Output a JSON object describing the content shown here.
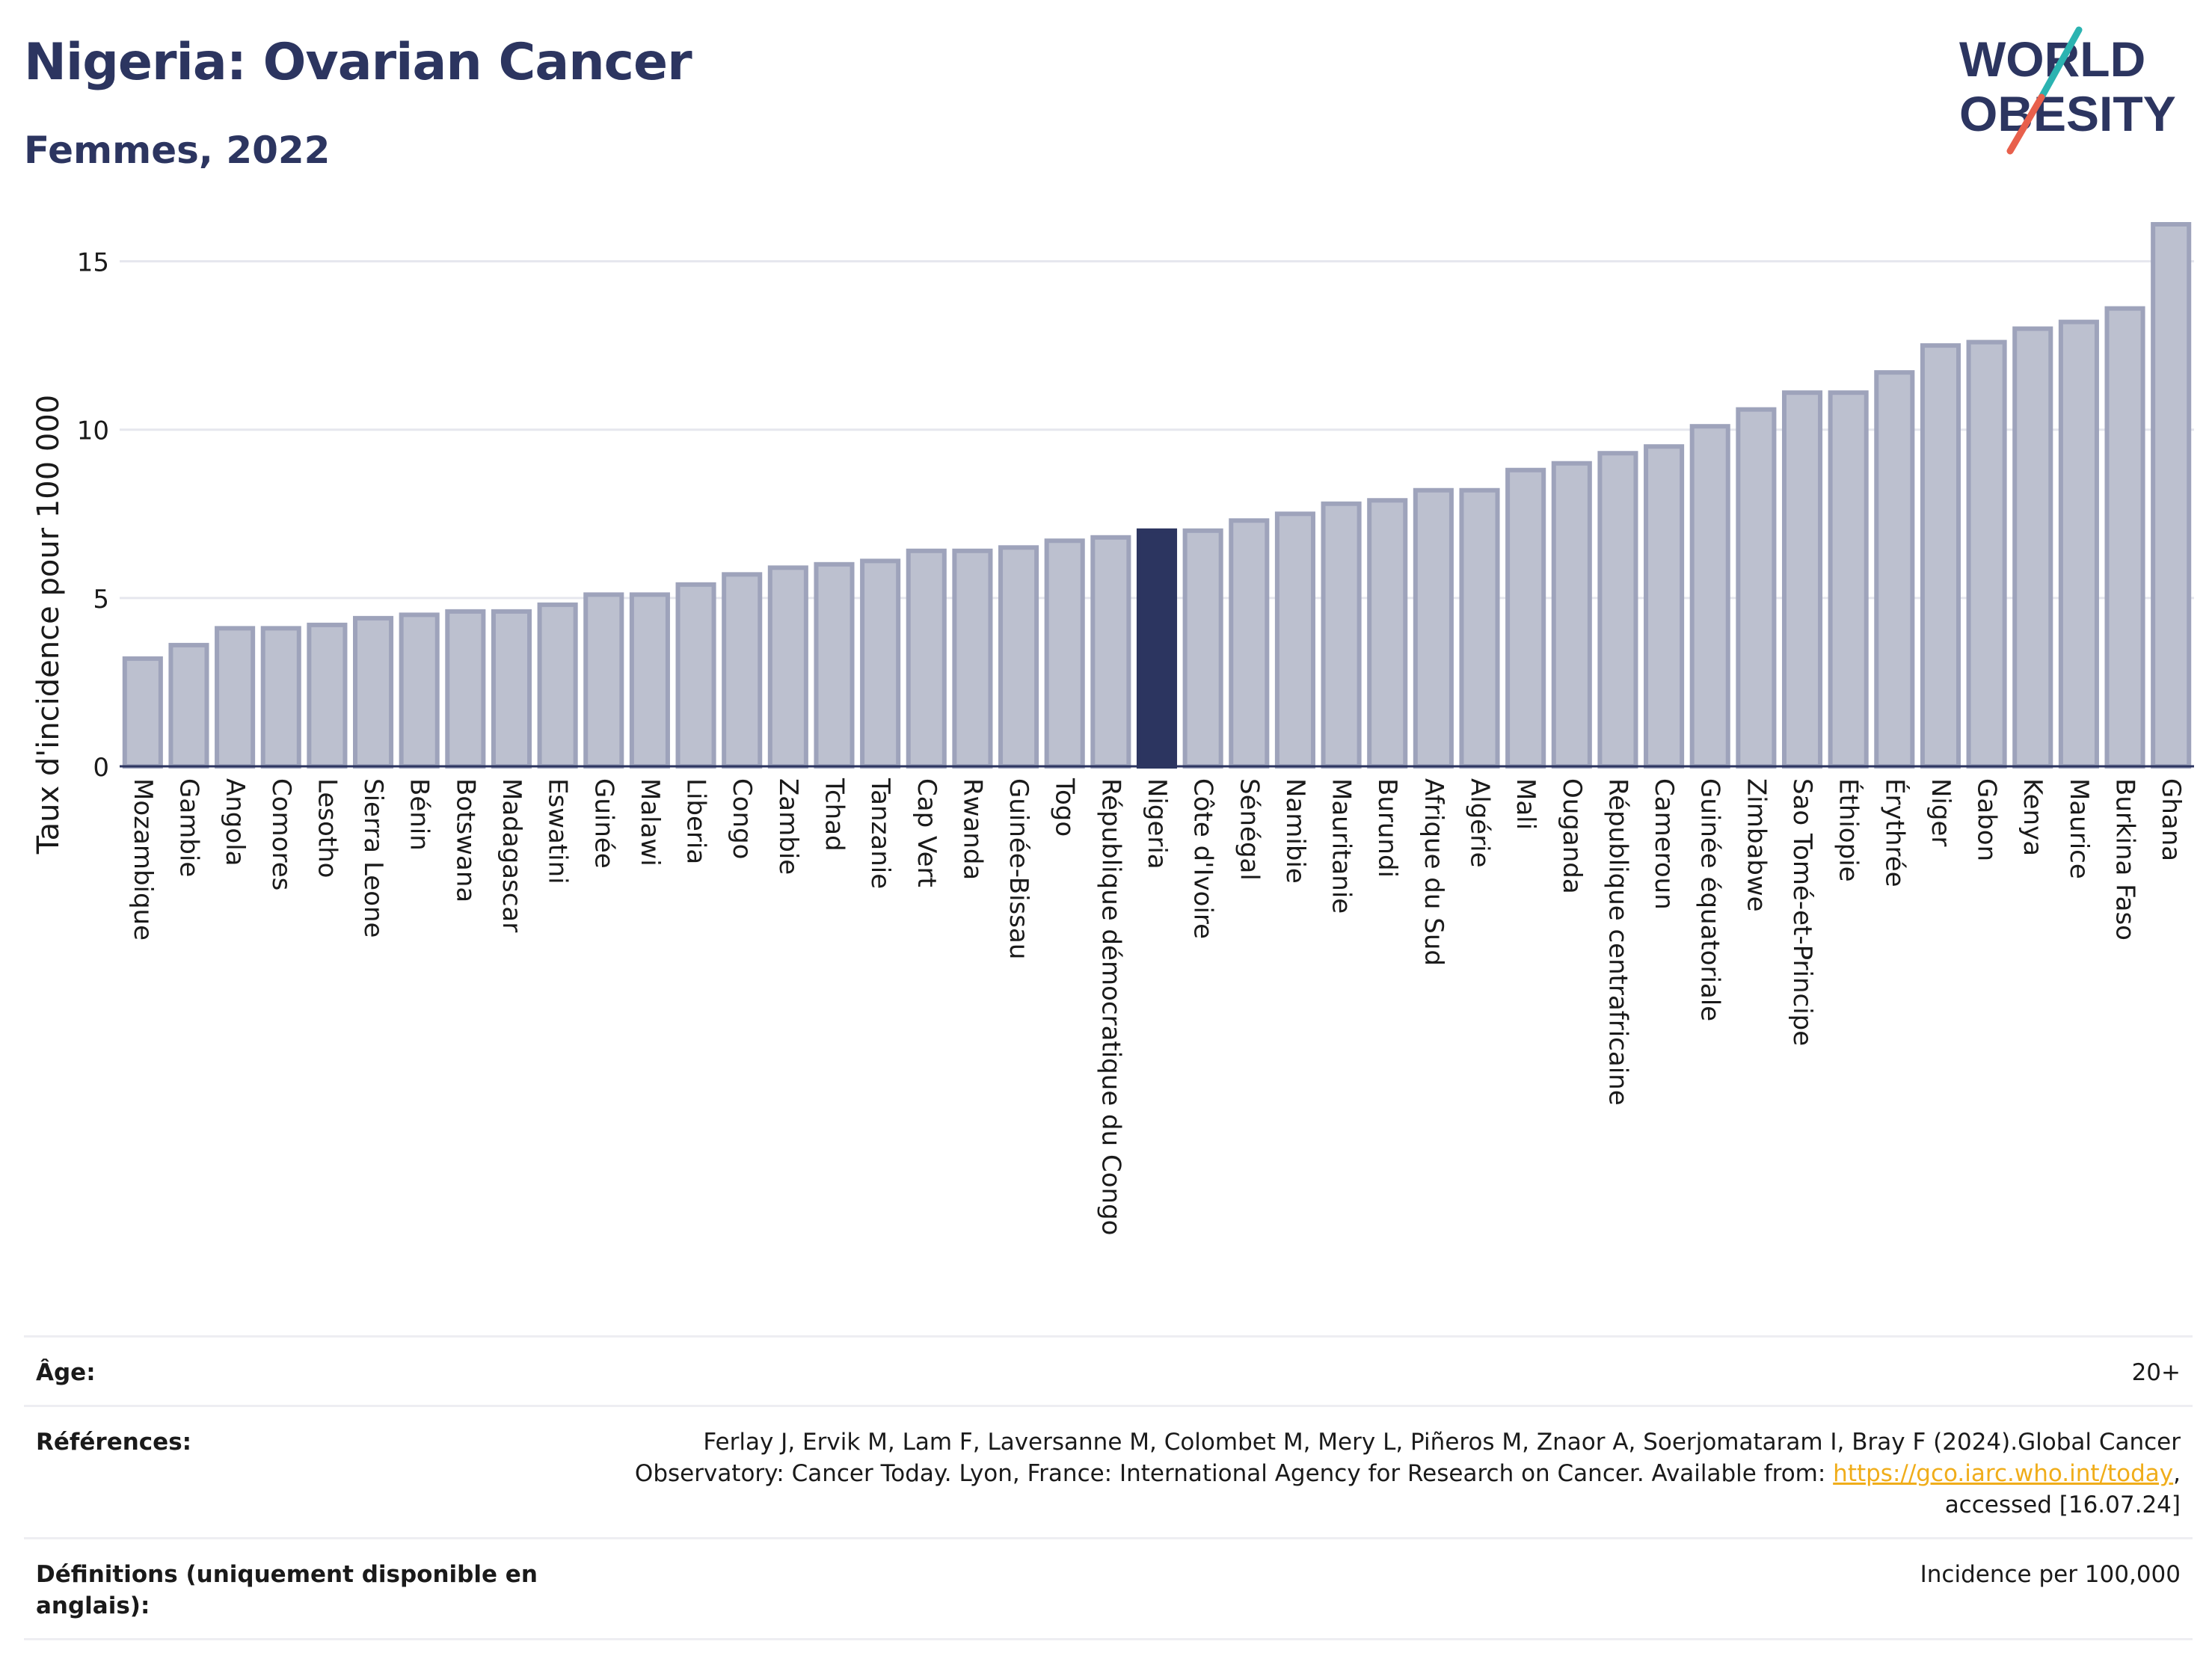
{
  "header": {
    "title": "Nigeria: Ovarian Cancer",
    "subtitle": "Femmes, 2022"
  },
  "logo": {
    "line1": "WORLD",
    "line2": "OBESITY",
    "colors": {
      "text": "#2c3560",
      "slash_teal": "#2bb3b1",
      "slash_red": "#e8604c"
    }
  },
  "chart_data": {
    "type": "bar",
    "title": "",
    "xlabel": "",
    "ylabel": "Taux d'incidence pour 100 000",
    "ylim": [
      0,
      16.5
    ],
    "yticks": [
      0,
      5,
      10,
      15
    ],
    "grid": true,
    "highlight": "Nigeria",
    "colors": {
      "bar": "#bcc0cf",
      "bar_border": "#9ea3bb",
      "highlight": "#2c3560",
      "grid": "#e6e7ee",
      "axis": "#2c3560"
    },
    "categories": [
      "Mozambique",
      "Gambie",
      "Angola",
      "Comores",
      "Lesotho",
      "Sierra Leone",
      "Bénin",
      "Botswana",
      "Madagascar",
      "Eswatini",
      "Guinée",
      "Malawi",
      "Liberia",
      "Congo",
      "Zambie",
      "Tchad",
      "Tanzanie",
      "Cap Vert",
      "Rwanda",
      "Guinée-Bissau",
      "Togo",
      "République démocratique du Congo",
      "Nigeria",
      "Côte d'Ivoire",
      "Sénégal",
      "Namibie",
      "Mauritanie",
      "Burundi",
      "Afrique du Sud",
      "Algérie",
      "Mali",
      "Ouganda",
      "République centrafricaine",
      "Cameroun",
      "Guinée équatoriale",
      "Zimbabwe",
      "Sao Tomé-et-Principe",
      "Éthiopie",
      "Érythrée",
      "Niger",
      "Gabon",
      "Kenya",
      "Maurice",
      "Burkina Faso",
      "Ghana"
    ],
    "values": [
      3.2,
      3.6,
      4.1,
      4.1,
      4.2,
      4.4,
      4.5,
      4.6,
      4.6,
      4.8,
      5.1,
      5.1,
      5.4,
      5.7,
      5.9,
      6.0,
      6.1,
      6.4,
      6.4,
      6.5,
      6.7,
      6.8,
      7.0,
      7.0,
      7.3,
      7.5,
      7.8,
      7.9,
      8.2,
      8.2,
      8.8,
      9.0,
      9.3,
      9.5,
      10.1,
      10.6,
      11.1,
      11.1,
      11.7,
      12.5,
      12.6,
      13.0,
      13.2,
      13.6,
      16.1
    ]
  },
  "footer": {
    "age_label": "Âge:",
    "age_value": "20+",
    "refs_label": "Références:",
    "refs_text": "Ferlay J, Ervik M, Lam F, Laversanne M, Colombet M, Mery L, Piñeros M, Znaor A, Soerjomataram I, Bray F (2024).Global Cancer Observatory: Cancer Today. Lyon, France: International Agency for Research on Cancer. Available from: ",
    "refs_link": "https://gco.iarc.who.int/today",
    "refs_tail": ", accessed [16.07.24]",
    "defs_label": "Définitions (uniquement disponible en anglais):",
    "defs_value": "Incidence per 100,000"
  }
}
